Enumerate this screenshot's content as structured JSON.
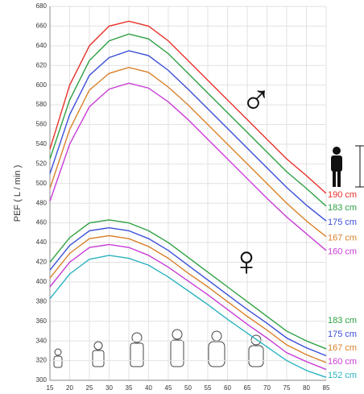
{
  "chart_data": {
    "type": "line",
    "y_label": "PEF ( L / min )",
    "x": [
      15,
      20,
      25,
      30,
      35,
      40,
      45,
      50,
      55,
      60,
      65,
      70,
      75,
      80,
      85
    ],
    "xlim": [
      15,
      85
    ],
    "xticks": [
      15,
      20,
      25,
      30,
      35,
      40,
      45,
      50,
      55,
      60,
      65,
      70,
      75,
      80,
      85
    ],
    "ylim": [
      300,
      680
    ],
    "yticks": [
      300,
      320,
      340,
      360,
      380,
      400,
      420,
      440,
      460,
      480,
      500,
      520,
      540,
      560,
      580,
      600,
      620,
      640,
      660,
      680
    ],
    "grid": true,
    "annotations": [
      "♂",
      "♀"
    ],
    "series": [
      {
        "name": "190 cm",
        "group": "♂",
        "color": "#e8312a",
        "values": [
          535,
          600,
          640,
          660,
          665,
          660,
          645,
          625,
          605,
          585,
          565,
          545,
          525,
          508,
          490
        ]
      },
      {
        "name": "183 cm",
        "group": "♂",
        "color": "#2ea043",
        "values": [
          525,
          585,
          625,
          645,
          652,
          647,
          632,
          612,
          592,
          572,
          552,
          532,
          512,
          495,
          477
        ]
      },
      {
        "name": "175 cm",
        "group": "♂",
        "color": "#3b4fd8",
        "values": [
          510,
          570,
          610,
          628,
          635,
          630,
          615,
          596,
          576,
          556,
          536,
          516,
          496,
          478,
          462
        ]
      },
      {
        "name": "167 cm",
        "group": "♂",
        "color": "#d9822b",
        "values": [
          495,
          555,
          595,
          612,
          618,
          613,
          598,
          580,
          560,
          540,
          520,
          500,
          480,
          462,
          446
        ]
      },
      {
        "name": "160 cm",
        "group": "♂",
        "color": "#c83cd6",
        "values": [
          482,
          540,
          578,
          596,
          602,
          597,
          583,
          565,
          545,
          525,
          505,
          485,
          466,
          449,
          432
        ]
      },
      {
        "name": "183 cm",
        "group": "♀",
        "color": "#2ea043",
        "values": [
          420,
          445,
          460,
          463,
          460,
          452,
          440,
          425,
          410,
          395,
          380,
          365,
          350,
          340,
          332
        ]
      },
      {
        "name": "175 cm",
        "group": "♀",
        "color": "#3b4fd8",
        "values": [
          412,
          437,
          452,
          455,
          452,
          444,
          432,
          417,
          402,
          387,
          372,
          358,
          343,
          333,
          325
        ]
      },
      {
        "name": "167 cm",
        "group": "♀",
        "color": "#d9822b",
        "values": [
          404,
          429,
          444,
          447,
          444,
          436,
          424,
          409,
          395,
          380,
          365,
          351,
          336,
          326,
          318
        ]
      },
      {
        "name": "160 cm",
        "group": "♀",
        "color": "#c83cd6",
        "values": [
          395,
          420,
          435,
          438,
          435,
          427,
          415,
          401,
          387,
          372,
          357,
          343,
          328,
          319,
          311
        ]
      },
      {
        "name": "152 cm",
        "group": "♀",
        "color": "#2ab3c0",
        "values": [
          383,
          408,
          423,
          427,
          424,
          417,
          405,
          391,
          377,
          362,
          348,
          334,
          320,
          310,
          303
        ]
      }
    ]
  }
}
